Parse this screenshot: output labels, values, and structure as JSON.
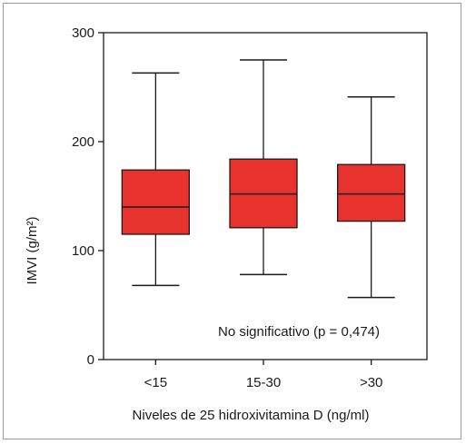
{
  "chart_data": {
    "type": "box",
    "categories": [
      "<15",
      "15-30",
      ">30"
    ],
    "boxes": [
      {
        "category": "<15",
        "whisker_low": 68,
        "q1": 115,
        "median": 140,
        "q3": 174,
        "whisker_high": 263
      },
      {
        "category": "15-30",
        "whisker_low": 78,
        "q1": 121,
        "median": 152,
        "q3": 184,
        "whisker_high": 275
      },
      {
        "category": ">30",
        "whisker_low": 57,
        "q1": 127,
        "median": 152,
        "q3": 179,
        "whisker_high": 241
      }
    ],
    "xlabel": "Niveles de 25 hidroxivitamina D (ng/ml)",
    "ylabel": "IMVI (g/m²)",
    "ylim": [
      0,
      300
    ],
    "yticks": [
      0,
      100,
      200,
      300
    ],
    "annotation": "No significativo (p = 0,474)",
    "grid": false,
    "box_color": "#e8322d",
    "line_color": "#1a1a1a"
  }
}
